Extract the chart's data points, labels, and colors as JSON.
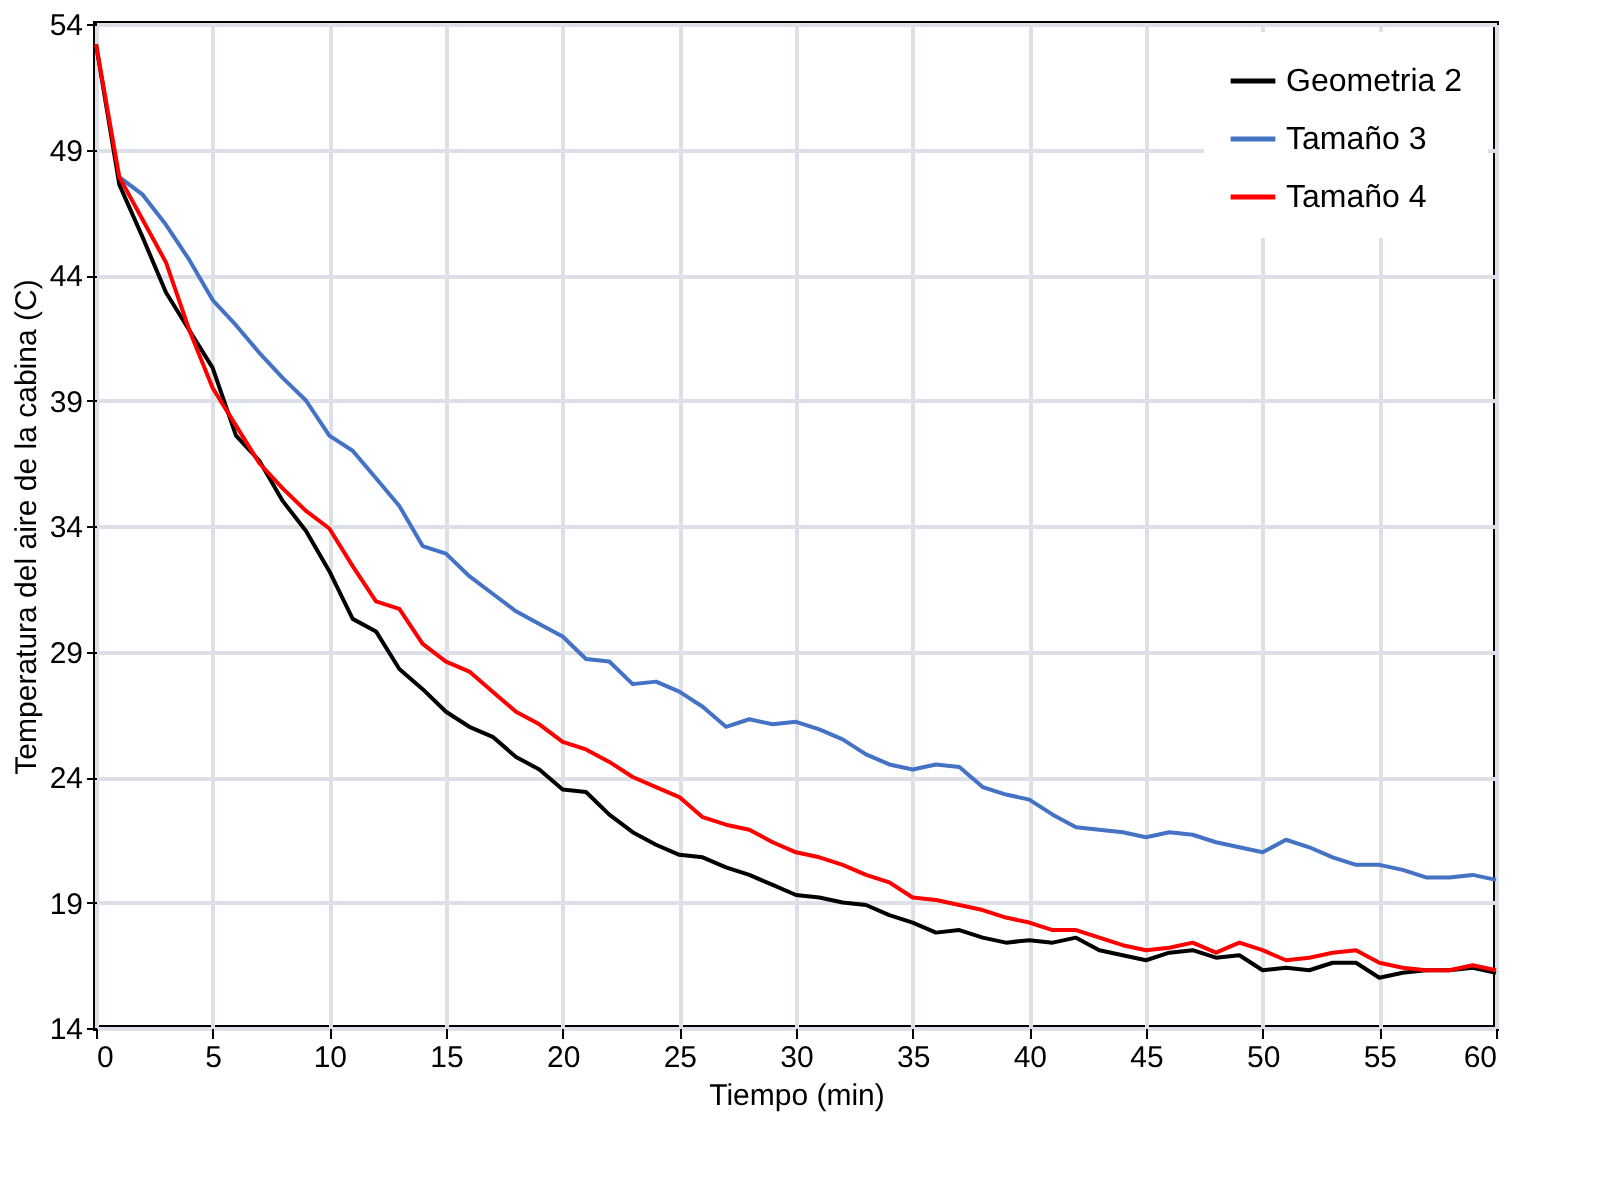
{
  "chart_data": {
    "type": "line",
    "xlabel": "Tiempo (min)",
    "ylabel": "Temperatura del aire de la cabina (C)",
    "x": [
      0,
      1,
      2,
      3,
      4,
      5,
      6,
      7,
      8,
      9,
      10,
      11,
      12,
      13,
      14,
      15,
      16,
      17,
      18,
      19,
      20,
      21,
      22,
      23,
      24,
      25,
      26,
      27,
      28,
      29,
      30,
      31,
      32,
      33,
      34,
      35,
      36,
      37,
      38,
      39,
      40,
      41,
      42,
      43,
      44,
      45,
      46,
      47,
      48,
      49,
      50,
      51,
      52,
      53,
      54,
      55,
      56,
      57,
      58,
      59,
      60
    ],
    "series": [
      {
        "name": "Geometria 2",
        "color": "#000000",
        "values": [
          53.2,
          47.6,
          45.5,
          43.3,
          41.8,
          40.3,
          37.6,
          36.6,
          35.0,
          33.8,
          32.2,
          30.3,
          29.8,
          28.3,
          27.5,
          26.6,
          26.0,
          25.6,
          24.8,
          24.3,
          23.5,
          23.4,
          22.5,
          21.8,
          21.3,
          20.9,
          20.8,
          20.4,
          20.1,
          19.7,
          19.3,
          19.2,
          19.0,
          18.9,
          18.5,
          18.2,
          17.8,
          17.9,
          17.6,
          17.4,
          17.5,
          17.4,
          17.6,
          17.1,
          16.9,
          16.7,
          17.0,
          17.1,
          16.8,
          16.9,
          16.3,
          16.4,
          16.3,
          16.6,
          16.6,
          16.0,
          16.2,
          16.3,
          16.3,
          16.4,
          16.2
        ]
      },
      {
        "name": "Tamaño 3",
        "color": "#4472c4",
        "values": [
          null,
          47.9,
          47.2,
          46.0,
          44.6,
          43.0,
          42.0,
          40.9,
          39.9,
          39.0,
          37.6,
          37.0,
          35.9,
          34.8,
          33.2,
          32.9,
          32.0,
          31.3,
          30.6,
          30.1,
          29.6,
          28.7,
          28.6,
          27.7,
          27.8,
          27.4,
          26.8,
          26.0,
          26.3,
          26.1,
          26.2,
          25.9,
          25.5,
          24.9,
          24.5,
          24.3,
          24.5,
          24.4,
          23.6,
          23.3,
          23.1,
          22.5,
          22.0,
          21.9,
          21.8,
          21.6,
          21.8,
          21.7,
          21.4,
          21.2,
          21.0,
          21.5,
          21.2,
          20.8,
          20.5,
          20.5,
          20.3,
          20.0,
          20.0,
          20.1,
          19.9
        ]
      },
      {
        "name": "Tamaño 4",
        "color": "#ff0000",
        "values": [
          53.2,
          47.9,
          46.2,
          44.5,
          41.8,
          39.5,
          38.0,
          36.5,
          35.5,
          34.6,
          33.9,
          32.4,
          31.0,
          30.7,
          29.3,
          28.6,
          28.2,
          27.4,
          26.6,
          26.1,
          25.4,
          25.1,
          24.6,
          24.0,
          23.6,
          23.2,
          22.4,
          22.1,
          21.9,
          21.4,
          21.0,
          20.8,
          20.5,
          20.1,
          19.8,
          19.2,
          19.1,
          18.9,
          18.7,
          18.4,
          18.2,
          17.9,
          17.9,
          17.6,
          17.3,
          17.1,
          17.2,
          17.4,
          17.0,
          17.4,
          17.1,
          16.7,
          16.8,
          17.0,
          17.1,
          16.6,
          16.4,
          16.3,
          16.3,
          16.5,
          16.3
        ]
      }
    ],
    "xlim": [
      0,
      60
    ],
    "xticks": [
      0,
      5,
      10,
      15,
      20,
      25,
      30,
      35,
      40,
      45,
      50,
      55,
      60
    ],
    "ylim": [
      14,
      54
    ],
    "yticks": [
      14,
      19,
      24,
      29,
      34,
      39,
      44,
      49,
      54
    ],
    "grid": true,
    "legend": "top right",
    "marker": "none",
    "line_style": "solid"
  }
}
